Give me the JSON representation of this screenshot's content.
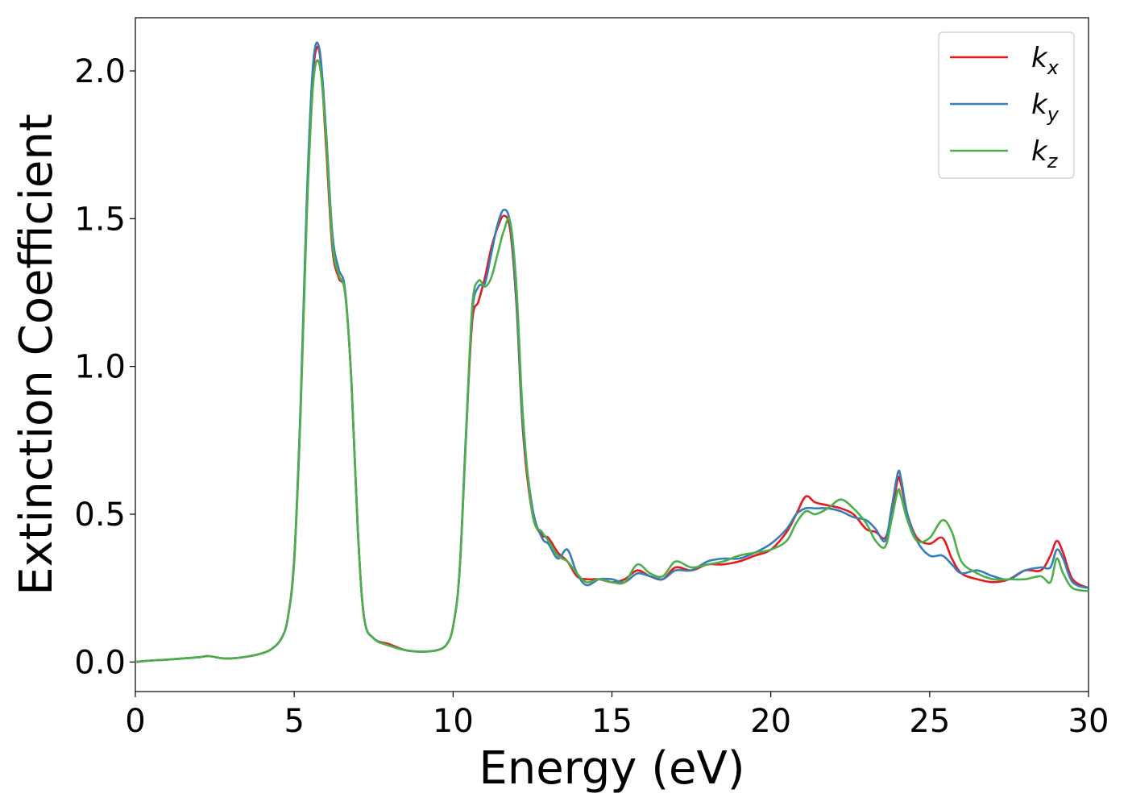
{
  "chart_data": {
    "type": "line",
    "title": "",
    "xlabel": "Energy (eV)",
    "ylabel": "Extinction Coefficient",
    "xlim": [
      0,
      30
    ],
    "ylim": [
      -0.1,
      2.18
    ],
    "xticks": [
      0,
      5,
      10,
      15,
      20,
      25,
      30
    ],
    "xtick_labels": [
      "0",
      "5",
      "10",
      "15",
      "20",
      "25",
      "30"
    ],
    "yticks": [
      0.0,
      0.5,
      1.0,
      1.5,
      2.0
    ],
    "ytick_labels": [
      "0.0",
      "0.5",
      "1.0",
      "1.5",
      "2.0"
    ],
    "grid": false,
    "legend_position": "top-right",
    "series": [
      {
        "name": "k_x",
        "label_main": "k",
        "label_sub": "x",
        "color": "#e41a1c",
        "x": [
          0,
          0.5,
          1,
          1.5,
          2,
          2.3,
          2.7,
          3,
          3.5,
          4,
          4.3,
          4.6,
          4.8,
          5.0,
          5.2,
          5.4,
          5.6,
          5.8,
          6.0,
          6.2,
          6.4,
          6.6,
          6.8,
          7.0,
          7.2,
          7.5,
          8,
          8.5,
          9,
          9.5,
          9.8,
          10.0,
          10.2,
          10.4,
          10.6,
          10.8,
          11.0,
          11.2,
          11.4,
          11.6,
          11.8,
          12.0,
          12.2,
          12.5,
          12.8,
          13.0,
          13.3,
          13.6,
          13.9,
          14.2,
          14.6,
          15.0,
          15.4,
          15.8,
          16.2,
          16.6,
          17.0,
          17.5,
          18.0,
          18.5,
          19.0,
          19.5,
          20.0,
          20.5,
          20.8,
          21.1,
          21.4,
          21.8,
          22.2,
          22.6,
          23.0,
          23.3,
          23.6,
          23.8,
          24.0,
          24.1,
          24.3,
          24.6,
          25.0,
          25.4,
          25.7,
          26.0,
          26.5,
          27.0,
          27.5,
          28.0,
          28.5,
          28.8,
          29.0,
          29.2,
          29.5,
          30.0
        ],
        "values": [
          0.0,
          0.005,
          0.008,
          0.012,
          0.016,
          0.02,
          0.013,
          0.012,
          0.018,
          0.03,
          0.045,
          0.08,
          0.15,
          0.35,
          0.85,
          1.55,
          2.0,
          2.06,
          1.75,
          1.4,
          1.3,
          1.25,
          0.95,
          0.45,
          0.15,
          0.08,
          0.06,
          0.04,
          0.035,
          0.04,
          0.06,
          0.12,
          0.3,
          0.75,
          1.15,
          1.22,
          1.3,
          1.4,
          1.47,
          1.51,
          1.46,
          1.2,
          0.78,
          0.5,
          0.43,
          0.42,
          0.37,
          0.34,
          0.29,
          0.28,
          0.28,
          0.27,
          0.28,
          0.31,
          0.29,
          0.28,
          0.32,
          0.31,
          0.33,
          0.33,
          0.34,
          0.36,
          0.38,
          0.44,
          0.5,
          0.56,
          0.54,
          0.53,
          0.52,
          0.5,
          0.45,
          0.44,
          0.42,
          0.5,
          0.62,
          0.6,
          0.5,
          0.42,
          0.4,
          0.42,
          0.35,
          0.3,
          0.28,
          0.27,
          0.28,
          0.31,
          0.31,
          0.36,
          0.41,
          0.37,
          0.28,
          0.25
        ]
      },
      {
        "name": "k_y",
        "label_main": "k",
        "label_sub": "y",
        "color": "#377eb8",
        "x": [
          0,
          0.5,
          1,
          1.5,
          2,
          2.3,
          2.7,
          3,
          3.5,
          4,
          4.3,
          4.6,
          4.8,
          5.0,
          5.2,
          5.4,
          5.6,
          5.8,
          6.0,
          6.2,
          6.4,
          6.6,
          6.8,
          7.0,
          7.2,
          7.5,
          8,
          8.5,
          9,
          9.5,
          9.8,
          10.0,
          10.2,
          10.4,
          10.6,
          10.8,
          11.0,
          11.2,
          11.4,
          11.6,
          11.8,
          12.0,
          12.2,
          12.5,
          12.8,
          13.0,
          13.3,
          13.6,
          13.9,
          14.2,
          14.6,
          15.0,
          15.4,
          15.8,
          16.2,
          16.6,
          17.0,
          17.5,
          18.0,
          18.5,
          19.0,
          19.5,
          20.0,
          20.5,
          20.8,
          21.1,
          21.4,
          21.8,
          22.2,
          22.6,
          23.0,
          23.3,
          23.6,
          23.8,
          24.0,
          24.1,
          24.3,
          24.6,
          25.0,
          25.4,
          25.7,
          26.0,
          26.5,
          27.0,
          27.5,
          28.0,
          28.5,
          28.8,
          29.0,
          29.2,
          29.5,
          30.0
        ],
        "values": [
          0.0,
          0.005,
          0.008,
          0.012,
          0.016,
          0.02,
          0.013,
          0.012,
          0.018,
          0.03,
          0.045,
          0.08,
          0.15,
          0.35,
          0.87,
          1.58,
          2.03,
          2.07,
          1.8,
          1.45,
          1.33,
          1.26,
          0.95,
          0.45,
          0.15,
          0.08,
          0.055,
          0.04,
          0.035,
          0.04,
          0.06,
          0.12,
          0.3,
          0.76,
          1.18,
          1.27,
          1.28,
          1.38,
          1.48,
          1.53,
          1.48,
          1.22,
          0.8,
          0.52,
          0.42,
          0.4,
          0.35,
          0.38,
          0.3,
          0.26,
          0.28,
          0.28,
          0.27,
          0.3,
          0.29,
          0.28,
          0.31,
          0.31,
          0.34,
          0.35,
          0.35,
          0.37,
          0.4,
          0.45,
          0.5,
          0.52,
          0.52,
          0.52,
          0.51,
          0.49,
          0.48,
          0.45,
          0.41,
          0.52,
          0.64,
          0.62,
          0.5,
          0.41,
          0.36,
          0.36,
          0.33,
          0.3,
          0.31,
          0.29,
          0.28,
          0.31,
          0.32,
          0.32,
          0.38,
          0.35,
          0.27,
          0.25
        ]
      },
      {
        "name": "k_z",
        "label_main": "k",
        "label_sub": "z",
        "color": "#4daf4a",
        "x": [
          0,
          0.5,
          1,
          1.5,
          2,
          2.3,
          2.7,
          3,
          3.5,
          4,
          4.3,
          4.6,
          4.8,
          5.0,
          5.2,
          5.4,
          5.6,
          5.8,
          6.0,
          6.2,
          6.4,
          6.6,
          6.8,
          7.0,
          7.2,
          7.5,
          8,
          8.5,
          9,
          9.5,
          9.8,
          10.0,
          10.2,
          10.4,
          10.6,
          10.8,
          11.0,
          11.2,
          11.4,
          11.6,
          11.8,
          12.0,
          12.2,
          12.5,
          12.8,
          13.0,
          13.3,
          13.6,
          13.9,
          14.2,
          14.6,
          15.0,
          15.4,
          15.8,
          16.2,
          16.6,
          17.0,
          17.5,
          18.0,
          18.5,
          19.0,
          19.5,
          20.0,
          20.5,
          20.8,
          21.1,
          21.4,
          21.8,
          22.2,
          22.6,
          23.0,
          23.3,
          23.6,
          23.8,
          24.0,
          24.1,
          24.3,
          24.6,
          25.0,
          25.4,
          25.7,
          26.0,
          26.5,
          27.0,
          27.5,
          28.0,
          28.5,
          28.8,
          29.0,
          29.2,
          29.5,
          30.0
        ],
        "values": [
          0.0,
          0.005,
          0.008,
          0.012,
          0.016,
          0.02,
          0.013,
          0.012,
          0.018,
          0.03,
          0.045,
          0.08,
          0.15,
          0.34,
          0.84,
          1.52,
          1.96,
          2.02,
          1.78,
          1.42,
          1.31,
          1.25,
          0.95,
          0.45,
          0.15,
          0.08,
          0.055,
          0.04,
          0.035,
          0.04,
          0.06,
          0.12,
          0.3,
          0.74,
          1.2,
          1.29,
          1.27,
          1.3,
          1.38,
          1.46,
          1.49,
          1.26,
          0.83,
          0.5,
          0.44,
          0.41,
          0.36,
          0.34,
          0.3,
          0.27,
          0.28,
          0.27,
          0.27,
          0.33,
          0.3,
          0.29,
          0.34,
          0.32,
          0.33,
          0.34,
          0.36,
          0.37,
          0.38,
          0.41,
          0.47,
          0.51,
          0.5,
          0.52,
          0.55,
          0.52,
          0.47,
          0.41,
          0.39,
          0.48,
          0.58,
          0.56,
          0.48,
          0.41,
          0.42,
          0.48,
          0.44,
          0.34,
          0.3,
          0.28,
          0.28,
          0.28,
          0.29,
          0.27,
          0.35,
          0.3,
          0.25,
          0.24
        ]
      }
    ]
  }
}
